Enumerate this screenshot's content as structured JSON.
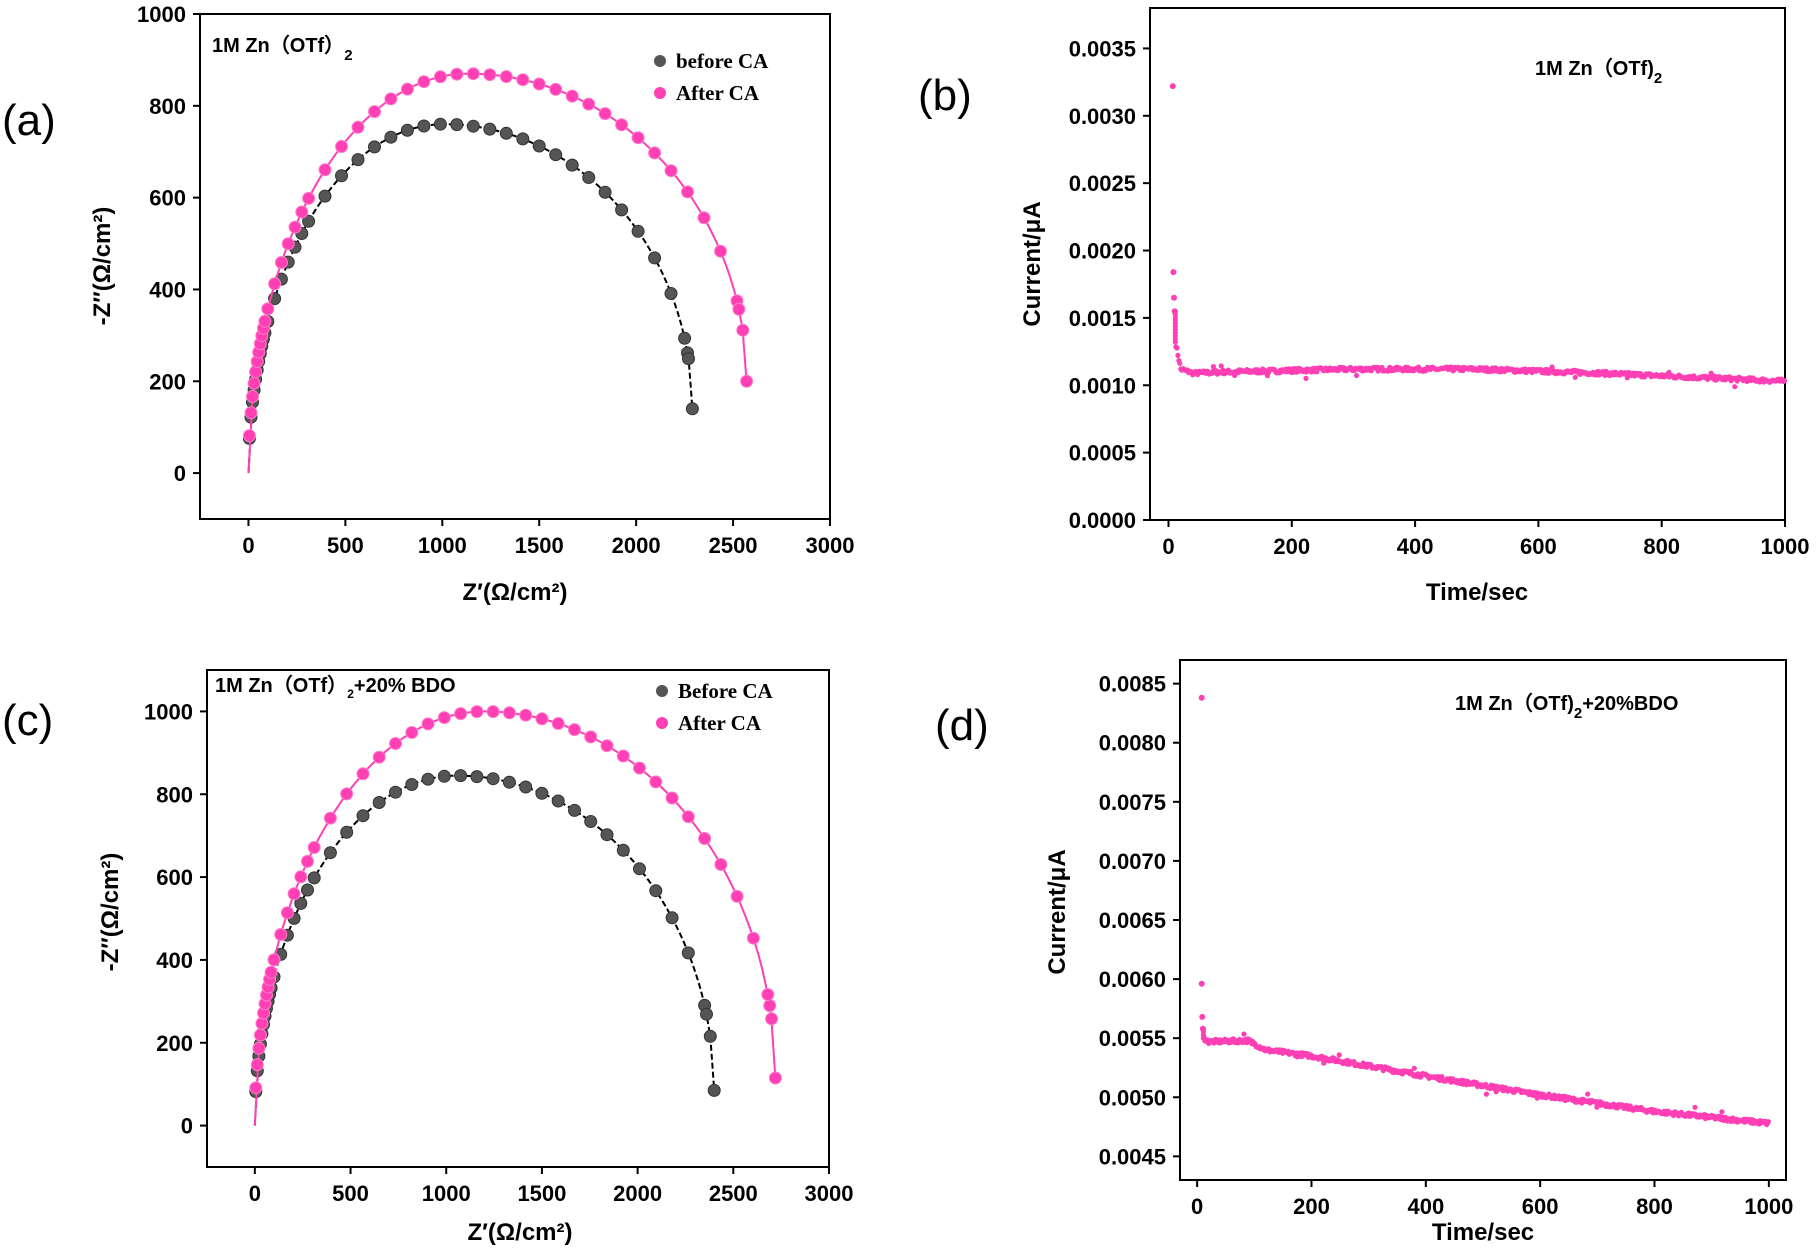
{
  "colors": {
    "before": "#555555",
    "after": "#ff3fb4",
    "curve_before": "#000000",
    "curve_after": "#ff3fb4"
  },
  "panels": [
    {
      "letter": "(a)",
      "chart_data": {
        "type": "scatter",
        "annotation": "1M Zn（OTf）",
        "annotation_sub": "2",
        "annotation_tail": "",
        "xlabel": "Z′(Ω/cm²)",
        "ylabel": "-Z″(Ω/cm²)",
        "xlim": [
          -250,
          3000
        ],
        "ylim": [
          -100,
          1000
        ],
        "xticks": [
          0,
          500,
          1000,
          1500,
          2000,
          2500,
          3000
        ],
        "yticks": [
          0,
          200,
          400,
          600,
          800,
          1000
        ],
        "legend_position": "top-right",
        "series": [
          {
            "name": "before CA",
            "color_key": "before",
            "R0": 0,
            "R1": 2290,
            "Hpeak": 760,
            "xend": 2290,
            "yend": 140
          },
          {
            "name": "After CA",
            "color_key": "after",
            "R0": 0,
            "R1": 2570,
            "Hpeak": 870,
            "xend": 2570,
            "yend": 200
          }
        ]
      }
    },
    {
      "letter": "(b)",
      "chart_data": {
        "type": "scatter",
        "annotation": "1M Zn（OTf)",
        "annotation_sub": "2",
        "annotation_tail": "",
        "xlabel": "Time/sec",
        "ylabel": "Current/μA",
        "xlim": [
          -30,
          1000
        ],
        "ylim": [
          0,
          0.0038
        ],
        "xticks": [
          0,
          200,
          400,
          600,
          800,
          1000
        ],
        "yticks": [
          0.0,
          0.0005,
          0.001,
          0.0015,
          0.002,
          0.0025,
          0.003,
          0.0035
        ],
        "ytick_labels": [
          "0.0000",
          "0.0005",
          "0.0010",
          "0.0015",
          "0.0020",
          "0.0025",
          "0.0030",
          "0.0035"
        ],
        "series": [
          {
            "name": "",
            "color_key": "after",
            "spikes": [
              [
                7,
                0.00322
              ],
              [
                8,
                0.00184
              ],
              [
                9,
                0.00165
              ],
              [
                10,
                0.00155
              ]
            ],
            "trend": [
              [
                12,
                0.0013
              ],
              [
                20,
                0.00112
              ],
              [
                40,
                0.00109
              ],
              [
                100,
                0.0011
              ],
              [
                300,
                0.00112
              ],
              [
                500,
                0.00112
              ],
              [
                700,
                0.00109
              ],
              [
                850,
                0.00106
              ],
              [
                1000,
                0.00103
              ]
            ]
          }
        ]
      }
    },
    {
      "letter": "(c)",
      "chart_data": {
        "type": "scatter",
        "annotation": "1M Zn（OTf）",
        "annotation_sub": "2",
        "annotation_tail": "+20% BDO",
        "xlabel": "Z′(Ω/cm²)",
        "ylabel": "-Z″(Ω/cm²)",
        "xlim": [
          -250,
          3000
        ],
        "ylim": [
          -100,
          1100
        ],
        "xticks": [
          0,
          500,
          1000,
          1500,
          2000,
          2500,
          3000
        ],
        "yticks": [
          0,
          200,
          400,
          600,
          800,
          1000
        ],
        "legend_position": "top-right",
        "series": [
          {
            "name": "Before CA",
            "color_key": "before",
            "R0": 0,
            "R1": 2400,
            "Hpeak": 845,
            "xend": 2400,
            "yend": 85
          },
          {
            "name": "After CA",
            "color_key": "after",
            "R0": 0,
            "R1": 2720,
            "Hpeak": 1000,
            "xend": 2720,
            "yend": 115
          }
        ]
      }
    },
    {
      "letter": "(d)",
      "chart_data": {
        "type": "scatter",
        "annotation": "1M Zn（OTf)",
        "annotation_sub": "2",
        "annotation_tail": "+20%BDO",
        "xlabel": "Time/sec",
        "ylabel": "Current/μA",
        "xlim": [
          -30,
          1030
        ],
        "ylim": [
          0.0043,
          0.0087
        ],
        "xticks": [
          0,
          200,
          400,
          600,
          800,
          1000
        ],
        "yticks": [
          0.0045,
          0.005,
          0.0055,
          0.006,
          0.0065,
          0.007,
          0.0075,
          0.008,
          0.0085
        ],
        "ytick_labels": [
          "0.0045",
          "0.0050",
          "0.0055",
          "0.0060",
          "0.0065",
          "0.0070",
          "0.0075",
          "0.0080",
          "0.0085"
        ],
        "series": [
          {
            "name": "",
            "color_key": "after",
            "spikes": [
              [
                8,
                0.00838
              ],
              [
                8,
                0.00596
              ],
              [
                9,
                0.00568
              ],
              [
                10,
                0.00558
              ]
            ],
            "trend": [
              [
                12,
                0.0055
              ],
              [
                20,
                0.00547
              ],
              [
                90,
                0.00548
              ],
              [
                120,
                0.0054
              ],
              [
                200,
                0.00535
              ],
              [
                400,
                0.00518
              ],
              [
                600,
                0.00502
              ],
              [
                800,
                0.00488
              ],
              [
                1000,
                0.00478
              ]
            ]
          }
        ]
      }
    }
  ]
}
